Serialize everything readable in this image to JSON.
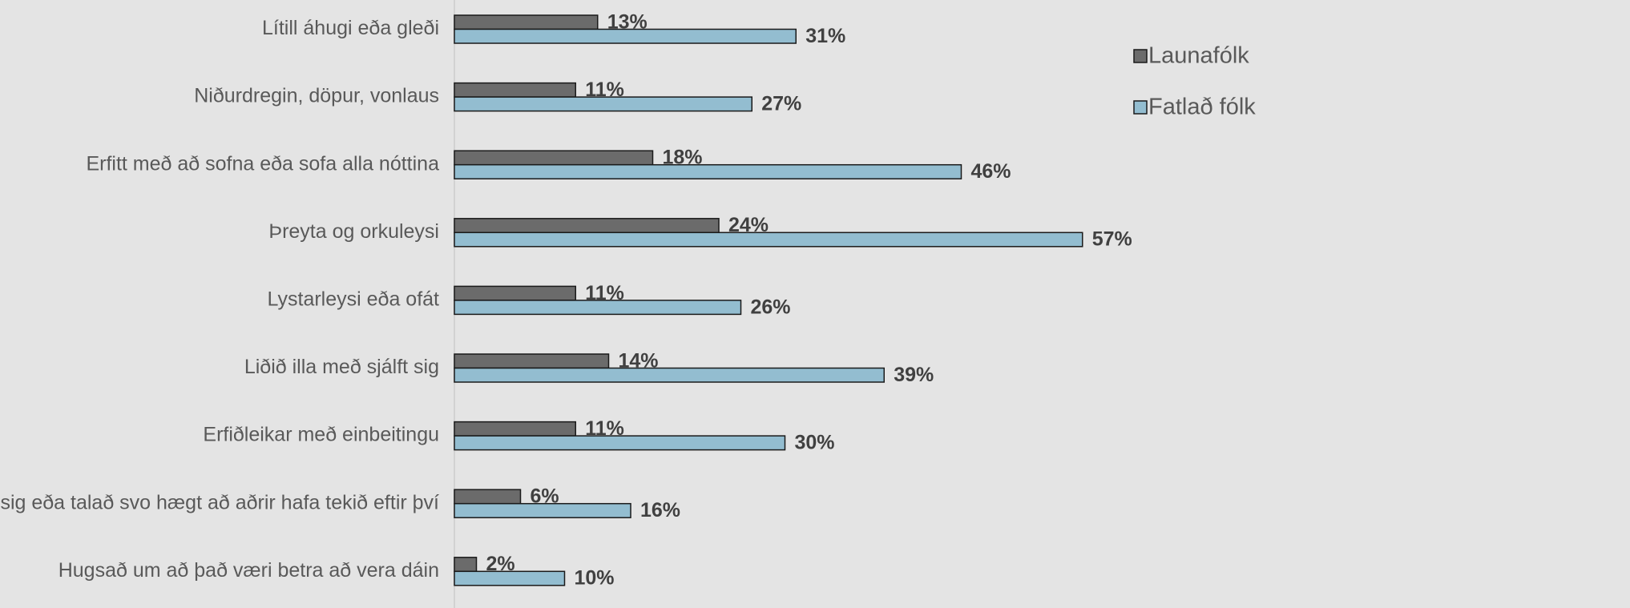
{
  "chart_data": {
    "type": "barh",
    "categories": [
      "Lítill áhugi eða gleði",
      "Niðurdregin, döpur, vonlaus",
      "Erfitt með að sofna eða sofa alla nóttina",
      "Þreyta og orkuleysi",
      "Lystarleysi eða ofát",
      "Liðið illa með sjálft sig",
      "Erfiðleikar með einbeitingu",
      "Hreyft sig eða talað svo hægt að aðrir hafa tekið eftir því",
      "Hugsað um að það væri betra að vera dáin"
    ],
    "series": [
      {
        "name": "Launafólk",
        "color": "#6b6b6b",
        "values": [
          13,
          11,
          18,
          24,
          11,
          14,
          11,
          6,
          2
        ],
        "value_labels": [
          "13%",
          "11%",
          "18%",
          "24%",
          "11%",
          "14%",
          "11%",
          "6%",
          "2%"
        ]
      },
      {
        "name": "Fatlað fólk",
        "color": "#93bdd0",
        "values": [
          31,
          27,
          46,
          57,
          26,
          39,
          30,
          16,
          10
        ],
        "value_labels": [
          "31%",
          "27%",
          "46%",
          "57%",
          "26%",
          "39%",
          "30%",
          "16%",
          "10%"
        ]
      }
    ],
    "legend": "right"
  }
}
